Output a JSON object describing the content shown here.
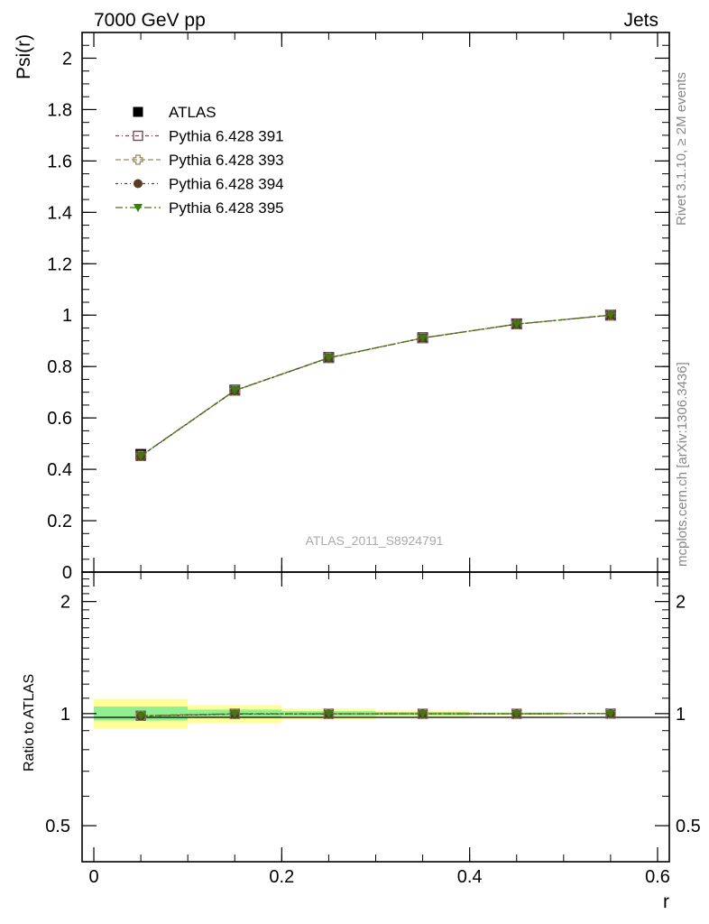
{
  "header": {
    "left": "7000 GeV pp",
    "right": "Jets"
  },
  "side_labels": {
    "top": "Rivet 3.1.10, ≥ 2M events",
    "bottom": "mcplots.cern.ch [arXiv:1306.3436]"
  },
  "colors": {
    "data": "#000000",
    "mc391": "#7b4a5a",
    "mc393": "#9a8a5a",
    "mc394": "#5a3c22",
    "mc395": "#3d7a12",
    "band_inner": "#90f090",
    "band_outer": "#ffff99"
  },
  "chart_data": [
    {
      "type": "line",
      "panel": "main",
      "title": "",
      "watermark": "ATLAS_2011_S8924791",
      "xlabel": "r",
      "ylabel": "Psi(r)",
      "xlim": [
        -0.0125,
        0.6125
      ],
      "ylim": [
        0,
        2.1
      ],
      "yticks": [
        0,
        0.2,
        0.4,
        0.6,
        0.8,
        1,
        1.2,
        1.4,
        1.6,
        1.8,
        2
      ],
      "ytick_labels": [
        "0",
        "0.2",
        "0.4",
        "0.6",
        "0.8",
        "1",
        "1.2",
        "1.4",
        "1.6",
        "1.8",
        "2"
      ],
      "legend_position": "top-left",
      "x": [
        0.05,
        0.15,
        0.25,
        0.35,
        0.45,
        0.55
      ],
      "series": [
        {
          "name": "ATLAS",
          "values": [
            0.458,
            0.708,
            0.835,
            0.912,
            0.966,
            1.0
          ],
          "marker": "filled-square",
          "color_key": "data"
        },
        {
          "name": "Pythia 6.428 391",
          "values": [
            0.452,
            0.707,
            0.834,
            0.911,
            0.965,
            1.0
          ],
          "marker": "open-square",
          "color_key": "mc391"
        },
        {
          "name": "Pythia 6.428 393",
          "values": [
            0.452,
            0.706,
            0.834,
            0.911,
            0.965,
            1.0
          ],
          "marker": "open-cross",
          "color_key": "mc393"
        },
        {
          "name": "Pythia 6.428 394",
          "values": [
            0.451,
            0.706,
            0.833,
            0.911,
            0.965,
            1.0
          ],
          "marker": "filled-circle",
          "color_key": "mc394"
        },
        {
          "name": "Pythia 6.428 395",
          "values": [
            0.452,
            0.707,
            0.834,
            0.911,
            0.965,
            1.0
          ],
          "marker": "filled-triangle-down",
          "color_key": "mc395"
        }
      ]
    },
    {
      "type": "line",
      "panel": "ratio",
      "xlabel": "r",
      "ylabel": "Ratio to ATLAS",
      "y_scale": "log",
      "xlim": [
        -0.0125,
        0.6125
      ],
      "ylim": [
        0.4,
        2.4
      ],
      "xticks": [
        0,
        0.2,
        0.4,
        0.6
      ],
      "xtick_labels": [
        "0",
        "0.2",
        "0.4",
        "0.6"
      ],
      "yticks": [
        0.5,
        1,
        2
      ],
      "ytick_labels": [
        "0.5",
        "1",
        "2"
      ],
      "bins": [
        [
          0.0,
          0.1
        ],
        [
          0.1,
          0.2
        ],
        [
          0.2,
          0.3
        ],
        [
          0.3,
          0.4
        ],
        [
          0.4,
          0.5
        ],
        [
          0.5,
          0.6
        ]
      ],
      "band_inner": [
        [
          0.958,
          1.045
        ],
        [
          0.975,
          1.025
        ],
        [
          0.985,
          1.015
        ],
        [
          0.99,
          1.01
        ],
        [
          0.994,
          1.006
        ],
        [
          1.0,
          1.0
        ]
      ],
      "band_outer": [
        [
          0.91,
          1.095
        ],
        [
          0.945,
          1.055
        ],
        [
          0.967,
          1.033
        ],
        [
          0.98,
          1.02
        ],
        [
          0.99,
          1.01
        ],
        [
          1.0,
          1.0
        ]
      ],
      "x": [
        0.05,
        0.15,
        0.25,
        0.35,
        0.45,
        0.55
      ],
      "series": [
        {
          "name": "Pythia 6.428 391",
          "values": [
            0.987,
            0.999,
            0.999,
            0.999,
            0.999,
            1.0
          ],
          "marker": "open-square",
          "color_key": "mc391"
        },
        {
          "name": "Pythia 6.428 393",
          "values": [
            0.986,
            0.997,
            0.999,
            0.999,
            0.999,
            1.0
          ],
          "marker": "open-cross",
          "color_key": "mc393"
        },
        {
          "name": "Pythia 6.428 394",
          "values": [
            0.985,
            0.997,
            0.998,
            0.999,
            0.999,
            1.0
          ],
          "marker": "filled-circle",
          "color_key": "mc394"
        },
        {
          "name": "Pythia 6.428 395",
          "values": [
            0.987,
            0.999,
            0.999,
            0.999,
            0.999,
            1.0
          ],
          "marker": "filled-triangle-down",
          "color_key": "mc395"
        }
      ]
    }
  ]
}
